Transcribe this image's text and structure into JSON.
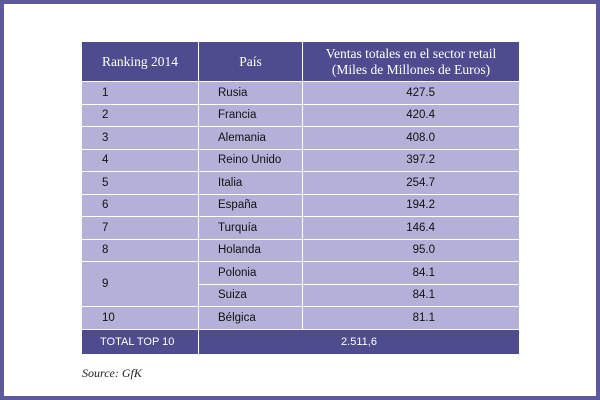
{
  "table": {
    "headers": {
      "ranking": "Ranking 2014",
      "country": "País",
      "sales_line1": "Ventas totales en el sector retail",
      "sales_line2": "(Miles de Millones de Euros)"
    },
    "rows": [
      {
        "rank": "1",
        "country": "Rusia",
        "value": "427.5"
      },
      {
        "rank": "2",
        "country": "Francia",
        "value": "420.4"
      },
      {
        "rank": "3",
        "country": "Alemania",
        "value": "408.0"
      },
      {
        "rank": "4",
        "country": "Reino Unido",
        "value": "397.2"
      },
      {
        "rank": "5",
        "country": "Italia",
        "value": "254.7"
      },
      {
        "rank": "6",
        "country": "España",
        "value": "194.2"
      },
      {
        "rank": "7",
        "country": "Turquía",
        "value": "146.4"
      },
      {
        "rank": "8",
        "country": "Holanda",
        "value": "95.0"
      },
      {
        "rank": "9",
        "country": "Polonia",
        "value": "84.1"
      },
      {
        "rank": "",
        "country": "Suiza",
        "value": "84.1"
      },
      {
        "rank": "10",
        "country": "Bélgica",
        "value": "81.1"
      }
    ],
    "total": {
      "label": "TOTAL TOP 10",
      "value": "2.511,6"
    }
  },
  "source": "Source: GfK",
  "colors": {
    "frame": "#5d5a9c",
    "header_bg": "#4f4b8f",
    "row_bg": "#b4b1d9"
  }
}
